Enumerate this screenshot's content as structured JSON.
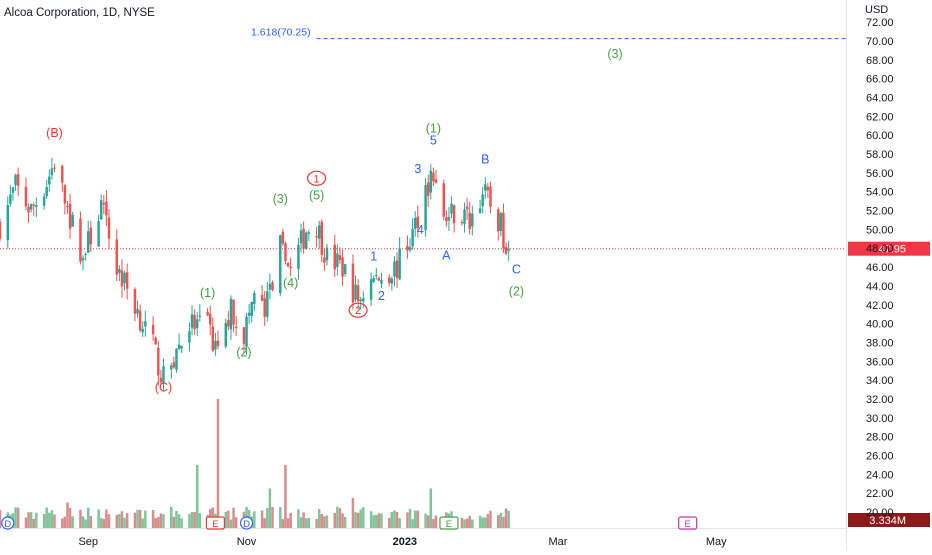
{
  "header": {
    "title": "Alcoa Corporation, 1D, NYSE"
  },
  "colors": {
    "up": "#26a69a",
    "down": "#ef5350",
    "vol_up": "#7fc49a",
    "vol_down": "#d98c8c",
    "green_label": "#43a047",
    "red_label": "#e53935",
    "blue_label": "#2962ff",
    "fib_line": "#2962ff",
    "price_badge": "#f23645",
    "volume_badge": "#8b1a1a",
    "axis_text": "#131722"
  },
  "chart_data": {
    "type": "candlestick",
    "y_axis": {
      "unit": "USD",
      "min": 18,
      "max": 74,
      "ticks": [
        "20.00",
        "22.00",
        "24.00",
        "26.00",
        "28.00",
        "30.00",
        "32.00",
        "34.00",
        "36.00",
        "38.00",
        "40.00",
        "42.00",
        "44.00",
        "46.00",
        "48.00",
        "50.00",
        "52.00",
        "54.00",
        "56.00",
        "58.00",
        "60.00",
        "62.00",
        "64.00",
        "66.00",
        "68.00",
        "70.00",
        "72.00"
      ]
    },
    "x_axis": {
      "ticks": [
        {
          "label": "Sep",
          "date": "2022-09-01"
        },
        {
          "label": "Nov",
          "date": "2022-11-01"
        },
        {
          "label": "2023",
          "date": "2023-01-01"
        },
        {
          "label": "Mar",
          "date": "2023-03-01"
        },
        {
          "label": "May",
          "date": "2023-05-01"
        }
      ]
    },
    "date_range": [
      "2022-07-29",
      "2023-06-20"
    ],
    "current_price": {
      "value": 47.95,
      "label": "47.95"
    },
    "current_volume": {
      "label": "3.334M"
    },
    "fib_level": {
      "label": "1.618(70.25)",
      "value": 70.25,
      "start_date": "2022-11-28"
    },
    "price_path": [
      [
        "2022-07-29",
        50.5
      ],
      [
        "2022-08-04",
        54.5
      ],
      [
        "2022-08-10",
        52.0
      ],
      [
        "2022-08-16",
        55.0
      ],
      [
        "2022-08-19",
        57.2
      ],
      [
        "2022-08-24",
        52.0
      ],
      [
        "2022-08-30",
        47.0
      ],
      [
        "2022-09-06",
        52.5
      ],
      [
        "2022-09-12",
        46.0
      ],
      [
        "2022-09-19",
        42.0
      ],
      [
        "2022-09-26",
        37.5
      ],
      [
        "2022-09-30",
        34.0
      ],
      [
        "2022-10-05",
        37.0
      ],
      [
        "2022-10-10",
        40.0
      ],
      [
        "2022-10-17",
        39.5
      ],
      [
        "2022-10-21",
        36.5
      ],
      [
        "2022-10-26",
        41.5
      ],
      [
        "2022-10-31",
        39.0
      ],
      [
        "2022-11-04",
        43.0
      ],
      [
        "2022-11-08",
        41.0
      ],
      [
        "2022-11-14",
        48.0
      ],
      [
        "2022-11-18",
        45.5
      ],
      [
        "2022-11-24",
        50.0
      ],
      [
        "2022-11-28",
        50.5
      ],
      [
        "2022-12-02",
        47.0
      ],
      [
        "2022-12-08",
        46.0
      ],
      [
        "2022-12-14",
        42.5
      ],
      [
        "2022-12-19",
        44.5
      ],
      [
        "2022-12-23",
        45.0
      ],
      [
        "2022-12-29",
        46.0
      ],
      [
        "2023-01-04",
        49.5
      ],
      [
        "2023-01-09",
        54.5
      ],
      [
        "2023-01-12",
        56.0
      ],
      [
        "2023-01-16",
        51.0
      ],
      [
        "2023-01-20",
        52.0
      ],
      [
        "2023-01-26",
        51.0
      ],
      [
        "2023-01-31",
        54.0
      ],
      [
        "2023-02-03",
        52.5
      ],
      [
        "2023-02-06",
        51.0
      ],
      [
        "2023-02-10",
        47.95
      ]
    ],
    "volume_spikes": [
      {
        "date": "2022-10-21",
        "value": 32.0
      },
      {
        "date": "2022-10-13",
        "value": 25.0
      },
      {
        "date": "2022-11-16",
        "value": 25.0
      },
      {
        "date": "2022-11-10",
        "value": 22.5
      },
      {
        "date": "2022-08-24",
        "value": 21.0
      },
      {
        "date": "2023-01-11",
        "value": 22.5
      },
      {
        "date": "2022-12-12",
        "value": 21.5
      }
    ],
    "wave_labels": [
      {
        "text": "(B)",
        "date": "2022-08-19",
        "price": 59.8,
        "color": "red",
        "style": "plain"
      },
      {
        "text": "(C)",
        "date": "2022-09-30",
        "price": 32.8,
        "color": "red",
        "style": "plain"
      },
      {
        "text": "(1)",
        "date": "2022-10-17",
        "price": 42.8,
        "color": "green",
        "style": "plain"
      },
      {
        "text": "(2)",
        "date": "2022-10-31",
        "price": 36.5,
        "color": "green",
        "style": "plain"
      },
      {
        "text": "(3)",
        "date": "2022-11-14",
        "price": 52.8,
        "color": "green",
        "style": "plain"
      },
      {
        "text": "(4)",
        "date": "2022-11-18",
        "price": 43.9,
        "color": "green",
        "style": "plain"
      },
      {
        "text": "(5)",
        "date": "2022-11-28",
        "price": 53.2,
        "color": "green",
        "style": "plain"
      },
      {
        "text": "1",
        "date": "2022-11-28",
        "price": 55.0,
        "color": "red",
        "style": "circle"
      },
      {
        "text": "2",
        "date": "2022-12-14",
        "price": 41.0,
        "color": "red",
        "style": "circle"
      },
      {
        "text": "1",
        "date": "2022-12-20",
        "price": 46.7,
        "color": "blue",
        "style": "plain"
      },
      {
        "text": "2",
        "date": "2022-12-23",
        "price": 42.5,
        "color": "blue",
        "style": "plain"
      },
      {
        "text": "3",
        "date": "2023-01-06",
        "price": 56.0,
        "color": "blue",
        "style": "plain"
      },
      {
        "text": "4",
        "date": "2023-01-07",
        "price": 49.5,
        "color": "blue",
        "style": "plain"
      },
      {
        "text": "5",
        "date": "2023-01-12",
        "price": 59.0,
        "color": "blue",
        "style": "plain"
      },
      {
        "text": "(1)",
        "date": "2023-01-12",
        "price": 60.3,
        "color": "green",
        "style": "plain"
      },
      {
        "text": "A",
        "date": "2023-01-17",
        "price": 46.8,
        "color": "blue",
        "style": "plain"
      },
      {
        "text": "B",
        "date": "2023-02-01",
        "price": 57.0,
        "color": "blue",
        "style": "plain"
      },
      {
        "text": "C",
        "date": "2023-02-13",
        "price": 45.3,
        "color": "blue",
        "style": "plain"
      },
      {
        "text": "(2)",
        "date": "2023-02-13",
        "price": 43.0,
        "color": "green",
        "style": "plain"
      },
      {
        "text": "(3)",
        "date": "2023-03-23",
        "price": 68.2,
        "color": "green",
        "style": "plain"
      }
    ],
    "event_markers": [
      {
        "text": "D",
        "date": "2022-08-01",
        "style": "circle",
        "color": "blue"
      },
      {
        "text": "E",
        "date": "2022-10-20",
        "style": "box",
        "color": "red"
      },
      {
        "text": "D",
        "date": "2022-11-01",
        "style": "circle",
        "color": "blue"
      },
      {
        "text": "E",
        "date": "2023-01-18",
        "style": "box",
        "color": "green"
      },
      {
        "text": "E",
        "date": "2023-04-20",
        "style": "box",
        "color": "magenta"
      }
    ]
  }
}
